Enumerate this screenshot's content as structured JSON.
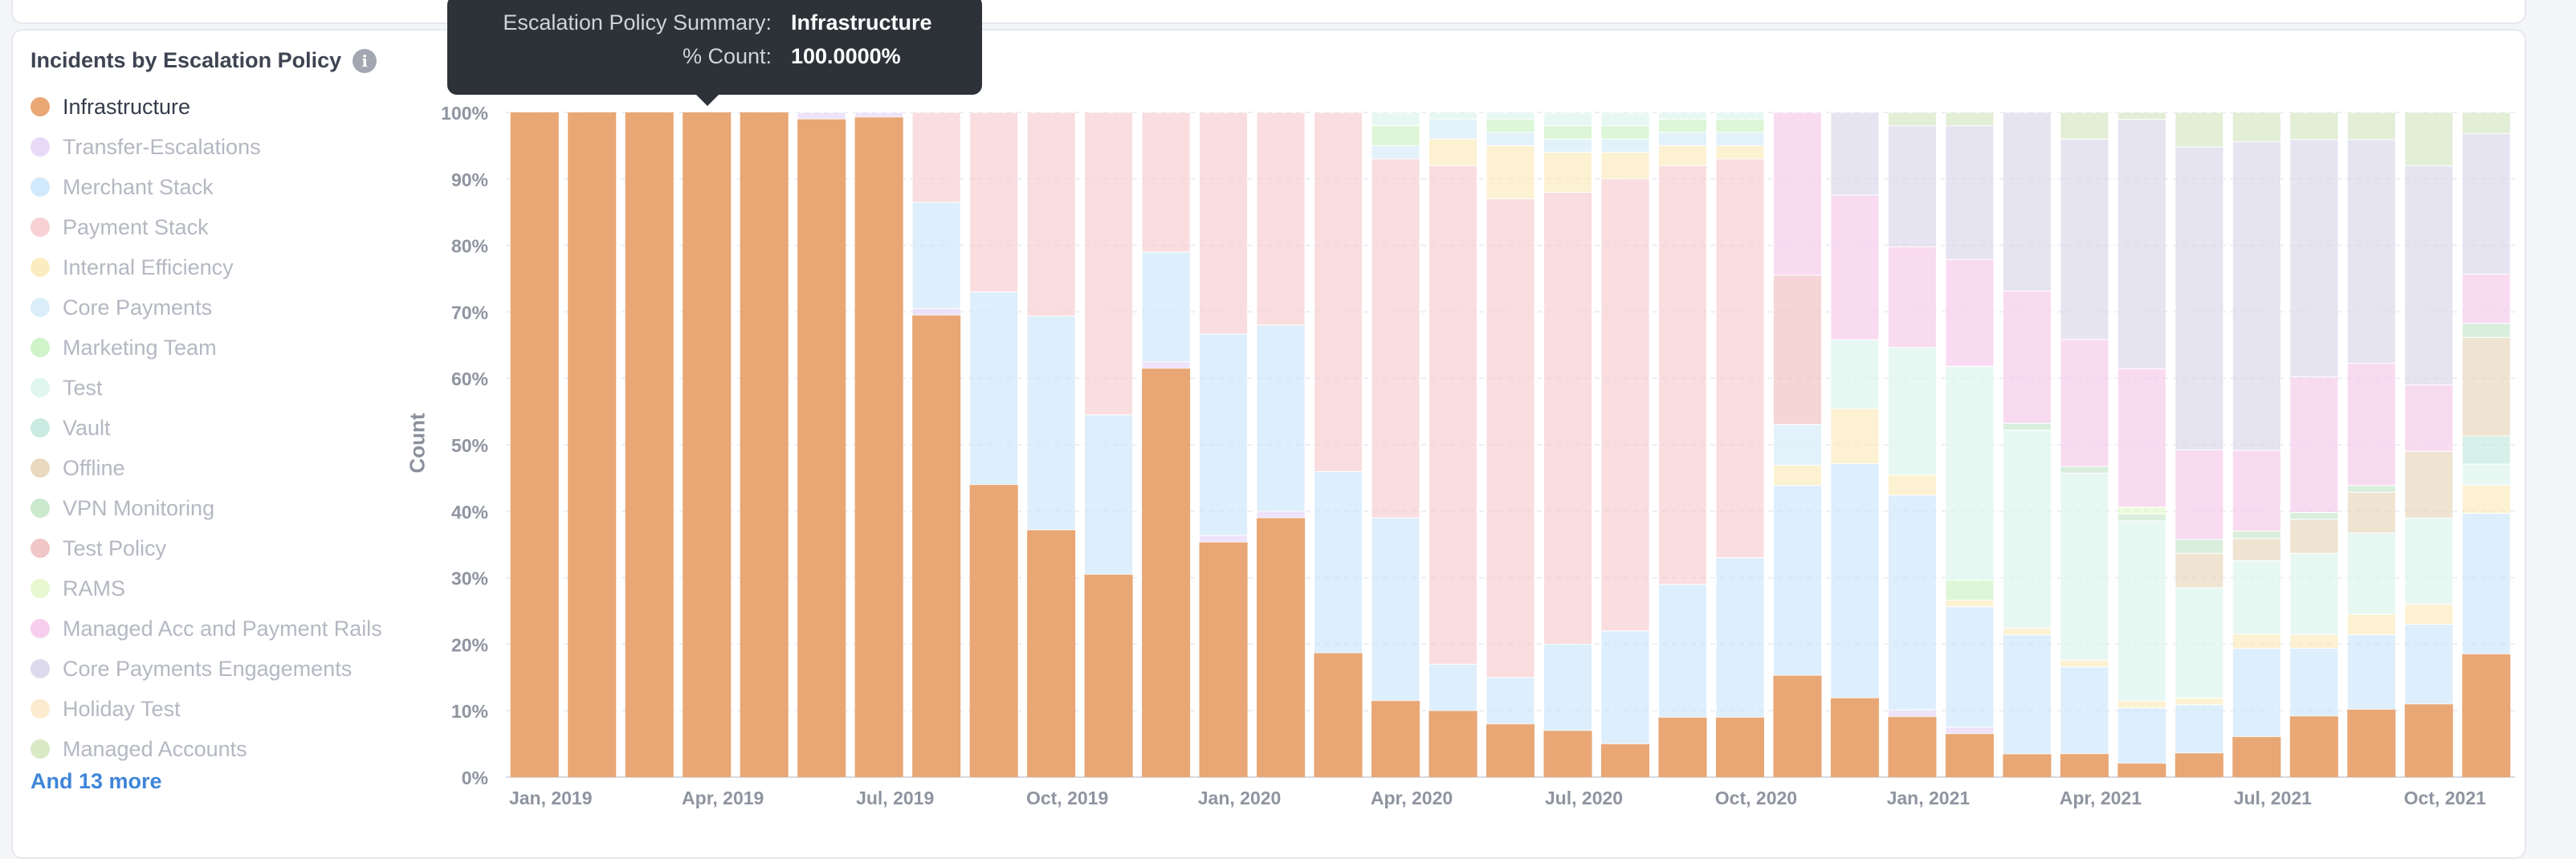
{
  "legend": {
    "title": "Incidents by Escalation Policy",
    "info_icon": "info-icon",
    "more_label": "And 13 more",
    "items": [
      {
        "label": "Infrastructure",
        "color": "#e8a775",
        "active": true
      },
      {
        "label": "Transfer-Escalations",
        "color": "#e5d2f8",
        "active": false
      },
      {
        "label": "Merchant Stack",
        "color": "#c9e5fb",
        "active": false
      },
      {
        "label": "Payment Stack",
        "color": "#f6c9cc",
        "active": false
      },
      {
        "label": "Internal Efficiency",
        "color": "#fbeab6",
        "active": false
      },
      {
        "label": "Core Payments",
        "color": "#d2ebf7",
        "active": false
      },
      {
        "label": "Marketing Team",
        "color": "#c8f1c0",
        "active": false
      },
      {
        "label": "Test",
        "color": "#d9f5ec",
        "active": false
      },
      {
        "label": "Vault",
        "color": "#bfe8dc",
        "active": false
      },
      {
        "label": "Offline",
        "color": "#e6d2b6",
        "active": false
      },
      {
        "label": "VPN Monitoring",
        "color": "#c2e5c7",
        "active": false
      },
      {
        "label": "Test Policy",
        "color": "#efbcbc",
        "active": false
      },
      {
        "label": "RAMS",
        "color": "#e3f7c8",
        "active": false
      },
      {
        "label": "Managed Acc and Payment Rails",
        "color": "#f6c6ea",
        "active": false
      },
      {
        "label": "Core Payments Engagements",
        "color": "#d6d4e8",
        "active": false
      },
      {
        "label": "Holiday Test",
        "color": "#fbe7c6",
        "active": false
      },
      {
        "label": "Managed Accounts",
        "color": "#d1e5bc",
        "active": false
      }
    ]
  },
  "tooltip": {
    "rows": [
      {
        "key": "Escalation Policy Summary:",
        "value": "Infrastructure"
      },
      {
        "key": "% Count:",
        "value": "100.0000%"
      }
    ]
  },
  "chart_data": {
    "type": "bar",
    "stacked": "percent",
    "title": "",
    "xlabel": "",
    "ylabel": "Count",
    "ylim": [
      0,
      100
    ],
    "yticks": [
      "0%",
      "10%",
      "20%",
      "30%",
      "40%",
      "50%",
      "60%",
      "70%",
      "80%",
      "90%",
      "100%"
    ],
    "x_tick_labels": [
      {
        "index": 0,
        "label": "Jan, 2019"
      },
      {
        "index": 3,
        "label": "Apr, 2019"
      },
      {
        "index": 6,
        "label": "Jul, 2019"
      },
      {
        "index": 9,
        "label": "Oct, 2019"
      },
      {
        "index": 12,
        "label": "Jan, 2020"
      },
      {
        "index": 15,
        "label": "Apr, 2020"
      },
      {
        "index": 18,
        "label": "Jul, 2020"
      },
      {
        "index": 21,
        "label": "Oct, 2020"
      },
      {
        "index": 24,
        "label": "Jan, 2021"
      },
      {
        "index": 27,
        "label": "Apr, 2021"
      },
      {
        "index": 30,
        "label": "Jul, 2021"
      },
      {
        "index": 33,
        "label": "Oct, 2021"
      }
    ],
    "categories": [
      "Jan 2019",
      "Feb 2019",
      "Mar 2019",
      "Apr 2019",
      "May 2019",
      "Jun 2019",
      "Jul 2019",
      "Aug 2019",
      "Sep 2019",
      "Oct 2019",
      "Nov 2019",
      "Dec 2019",
      "Jan 2020",
      "Feb 2020",
      "Mar 2020",
      "Apr 2020",
      "May 2020",
      "Jun 2020",
      "Jul 2020",
      "Aug 2020",
      "Sep 2020",
      "Oct 2020",
      "Nov 2020",
      "Dec 2020",
      "Jan 2021",
      "Feb 2021",
      "Mar 2021",
      "Apr 2021",
      "May 2021",
      "Jun 2021",
      "Jul 2021",
      "Aug 2021",
      "Sep 2021",
      "Oct 2021",
      "Nov 2021"
    ],
    "highlighted_series": "Infrastructure",
    "highlighted_index": 3,
    "series": [
      {
        "name": "Infrastructure",
        "color": "#e8a775",
        "values": [
          100,
          100,
          100,
          100,
          100,
          99,
          99.3,
          69.5,
          44,
          37,
          30.5,
          61.5,
          35,
          39,
          18.5,
          11.5,
          10,
          8,
          7,
          5,
          9,
          9,
          15,
          11.5,
          9,
          6.5,
          3.5,
          3.5,
          2,
          3.5,
          5.5,
          9,
          10,
          11,
          17.5
        ]
      },
      {
        "name": "Transfer-Escalations",
        "color": "#e5d2f8",
        "values": [
          0,
          0,
          0,
          0,
          0,
          1,
          0.7,
          1,
          0,
          0,
          0,
          1,
          1,
          1,
          0,
          0,
          0,
          0,
          0,
          0,
          0,
          0,
          0,
          0,
          1,
          1,
          0,
          0,
          0,
          0,
          0,
          0,
          0,
          0,
          0
        ]
      },
      {
        "name": "Merchant Stack",
        "color": "#c9e5fb",
        "values": [
          0,
          0,
          0,
          0,
          0,
          0,
          0,
          16,
          29,
          32,
          24,
          16.5,
          30,
          28,
          27,
          27.5,
          7,
          7,
          13,
          17,
          20,
          24,
          28,
          34,
          32,
          18,
          18,
          13,
          8,
          7,
          12,
          10,
          11,
          12,
          20
        ]
      },
      {
        "name": "Payment Stack",
        "color": "#f6c9cc",
        "values": [
          0,
          0,
          0,
          0,
          0,
          0,
          0,
          13.5,
          27,
          30.5,
          45.5,
          21,
          33,
          32,
          53.5,
          54,
          75,
          72,
          68,
          68,
          63,
          60,
          0,
          0,
          0,
          0,
          0,
          0,
          0,
          0,
          0,
          0,
          0,
          0,
          0
        ]
      },
      {
        "name": "Internal Efficiency",
        "color": "#fbeab6",
        "values": [
          0,
          0,
          0,
          0,
          0,
          0,
          0,
          0,
          0,
          0,
          0,
          0,
          0,
          0,
          0,
          0,
          4,
          8,
          6,
          4,
          3,
          2,
          3,
          8,
          3,
          1,
          1,
          1,
          1,
          1,
          2,
          2,
          3,
          3,
          4
        ]
      },
      {
        "name": "Core Payments",
        "color": "#d2ebf7",
        "values": [
          0,
          0,
          0,
          0,
          0,
          0,
          0,
          0,
          0,
          0,
          0,
          0,
          0,
          0,
          0,
          2,
          3,
          2,
          2,
          2,
          2,
          2,
          6,
          0,
          0,
          0,
          0,
          0,
          0,
          0,
          0,
          0,
          0,
          0,
          0
        ]
      },
      {
        "name": "Marketing Team",
        "color": "#c8f1c0",
        "values": [
          0,
          0,
          0,
          0,
          0,
          0,
          0,
          0,
          0,
          0,
          0,
          0,
          0,
          0,
          0,
          3,
          0,
          2,
          2,
          2,
          2,
          2,
          0,
          0,
          0,
          3,
          0,
          0,
          0,
          0,
          0,
          0,
          0,
          0,
          0
        ]
      },
      {
        "name": "Test",
        "color": "#d9f5ec",
        "values": [
          0,
          0,
          0,
          0,
          0,
          0,
          0,
          0,
          0,
          0,
          0,
          0,
          0,
          0,
          0,
          2,
          1,
          1,
          2,
          2,
          1,
          1,
          0,
          10,
          19,
          32,
          30,
          28,
          26,
          16,
          10,
          12,
          12,
          13,
          3
        ]
      },
      {
        "name": "Vault",
        "color": "#bfe8dc",
        "values": [
          0,
          0,
          0,
          0,
          0,
          0,
          0,
          0,
          0,
          0,
          0,
          0,
          0,
          0,
          0,
          0,
          0,
          0,
          0,
          0,
          0,
          0,
          0,
          0,
          0,
          0,
          0,
          0,
          0,
          0,
          0,
          0,
          0,
          0,
          4
        ]
      },
      {
        "name": "Offline",
        "color": "#e6d2b6",
        "values": [
          0,
          0,
          0,
          0,
          0,
          0,
          0,
          0,
          0,
          0,
          0,
          0,
          0,
          0,
          0,
          0,
          0,
          0,
          0,
          0,
          0,
          0,
          0,
          0,
          0,
          0,
          0,
          0,
          0,
          5,
          3,
          5,
          6,
          10,
          14
        ]
      },
      {
        "name": "VPN Monitoring",
        "color": "#c2e5c7",
        "values": [
          0,
          0,
          0,
          0,
          0,
          0,
          0,
          0,
          0,
          0,
          0,
          0,
          0,
          0,
          0,
          0,
          0,
          0,
          0,
          0,
          0,
          0,
          0,
          0,
          0,
          0,
          1,
          1,
          1,
          2,
          1,
          1,
          1,
          0,
          2
        ]
      },
      {
        "name": "Test Policy",
        "color": "#efbcbc",
        "values": [
          0,
          0,
          0,
          0,
          0,
          0,
          0,
          0,
          0,
          0,
          0,
          0,
          0,
          0,
          0,
          0,
          0,
          0,
          0,
          0,
          0,
          0,
          22,
          0,
          0,
          0,
          0,
          0,
          0,
          0,
          0,
          0,
          0,
          0,
          0
        ]
      },
      {
        "name": "RAMS",
        "color": "#e3f7c8",
        "values": [
          0,
          0,
          0,
          0,
          0,
          0,
          0,
          0,
          0,
          0,
          0,
          0,
          0,
          0,
          0,
          0,
          0,
          0,
          0,
          0,
          0,
          0,
          0,
          0,
          0,
          0,
          0,
          0,
          1,
          0,
          0,
          0,
          0,
          0,
          0
        ]
      },
      {
        "name": "Managed Acc and Payment Rails",
        "color": "#f6c6ea",
        "values": [
          0,
          0,
          0,
          0,
          0,
          0,
          0,
          0,
          0,
          0,
          0,
          0,
          0,
          0,
          0,
          0,
          0,
          0,
          0,
          0,
          0,
          0,
          24,
          21,
          15,
          16,
          20,
          19,
          20,
          13,
          11,
          20,
          18,
          10,
          7
        ]
      },
      {
        "name": "Core Payments Engagements",
        "color": "#d6d4e8",
        "values": [
          0,
          0,
          0,
          0,
          0,
          0,
          0,
          0,
          0,
          0,
          0,
          0,
          0,
          0,
          0,
          0,
          0,
          0,
          0,
          0,
          0,
          0,
          0,
          12,
          18,
          20,
          27,
          30,
          36,
          44,
          42,
          35,
          33,
          33,
          20
        ]
      },
      {
        "name": "Holiday Test",
        "color": "#fbe7c6",
        "values": [
          0,
          0,
          0,
          0,
          0,
          0,
          0,
          0,
          0,
          0,
          0,
          0,
          0,
          0,
          0,
          0,
          0,
          0,
          0,
          0,
          0,
          0,
          0,
          0,
          0,
          0,
          0,
          0,
          0,
          0,
          0,
          0,
          0,
          0,
          0
        ]
      },
      {
        "name": "Managed Accounts",
        "color": "#d1e5bc",
        "values": [
          0,
          0,
          0,
          0,
          0,
          0,
          0,
          0,
          0,
          0,
          0,
          0,
          0,
          0,
          0,
          0,
          0,
          0,
          0,
          0,
          0,
          0,
          0,
          0,
          2,
          2,
          0,
          4,
          1,
          5,
          4,
          4,
          4,
          8,
          3
        ]
      }
    ]
  }
}
